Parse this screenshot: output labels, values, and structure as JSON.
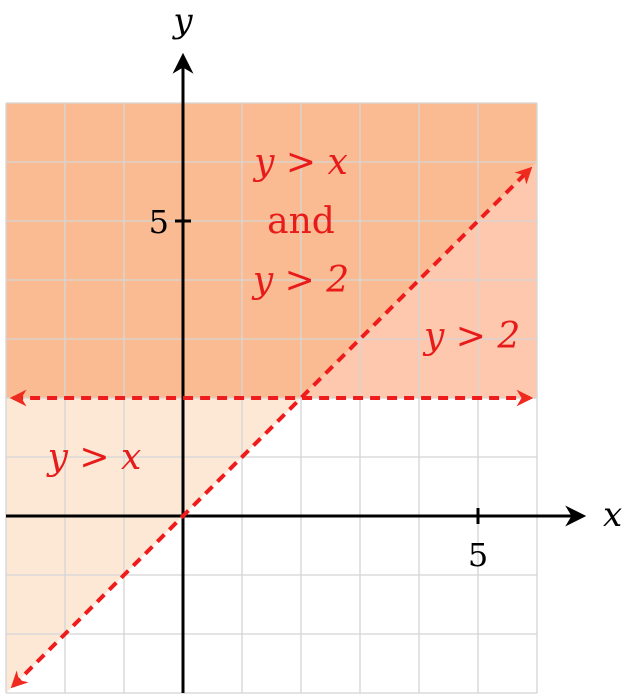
{
  "chart_data": {
    "type": "area",
    "title": "",
    "xlabel": "x",
    "ylabel": "y",
    "xlim": [
      -3,
      6
    ],
    "ylim": [
      -3,
      7
    ],
    "grid": true,
    "xticks": [
      {
        "value": 5,
        "label": "5"
      }
    ],
    "yticks": [
      {
        "value": 5,
        "label": "5"
      }
    ],
    "boundaries": [
      {
        "equation": "y = x",
        "style": "dashed",
        "arrows": "both"
      },
      {
        "equation": "y = 2",
        "style": "dashed",
        "arrows": "both"
      }
    ],
    "regions": [
      {
        "label": "y > x",
        "inequalities": [
          "y > x"
        ]
      },
      {
        "label": "y > 2",
        "inequalities": [
          "y > 2"
        ]
      },
      {
        "label_lines": [
          "y > x",
          "and",
          "y > 2"
        ],
        "inequalities": [
          "y > x",
          "y > 2"
        ]
      }
    ],
    "colors": {
      "boundary": "#ee1c1c",
      "label": "#e81b1b",
      "region_y_gt_x": "#fde8d6",
      "region_y_gt_2": "#fdc8ae",
      "region_both": "#fbbb92",
      "grid": "#d6d6d6",
      "axis": "#000000"
    }
  }
}
